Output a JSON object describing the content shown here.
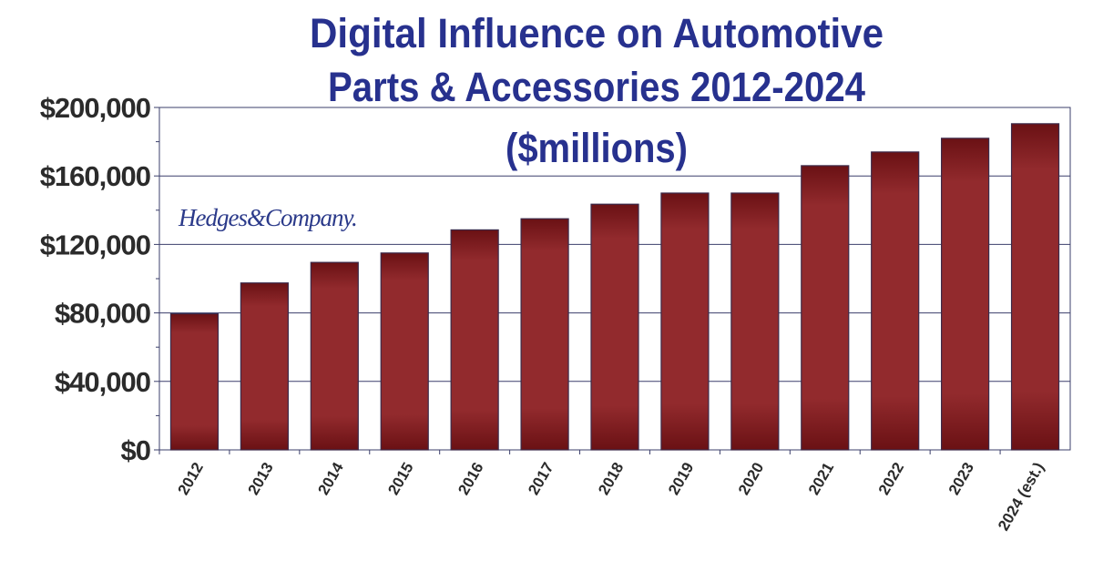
{
  "colors": {
    "title": "#27318e",
    "bar_dark": "#6a1114",
    "bar_mid": "#922a2d",
    "bar_outline": "#3b2a4a",
    "grid": "#3b3f6b",
    "tick_text": "#2b2b2b",
    "logo": "#2b3a8a"
  },
  "logo_text": "Hedges&Company.",
  "chart_data": {
    "type": "bar",
    "title_lines": [
      "Digital Influence on Automotive",
      "Parts & Accessories 2012-2024",
      "($millions)"
    ],
    "categories": [
      "2012",
      "2013",
      "2014",
      "2015",
      "2016",
      "2017",
      "2018",
      "2019",
      "2020",
      "2021",
      "2022",
      "2023",
      "2024 (est.)"
    ],
    "values": [
      79500,
      97500,
      109500,
      115000,
      128500,
      135000,
      143500,
      150000,
      150000,
      166000,
      174000,
      182000,
      190500
    ],
    "ylim": [
      0,
      200000
    ],
    "yticks": [
      0,
      40000,
      80000,
      120000,
      160000,
      200000
    ],
    "ytick_labels": [
      "$0",
      "$40,000",
      "$80,000",
      "$120,000",
      "$160,000",
      "$200,000"
    ],
    "xlabel": "",
    "ylabel": "",
    "grid": true,
    "legend": "none"
  }
}
